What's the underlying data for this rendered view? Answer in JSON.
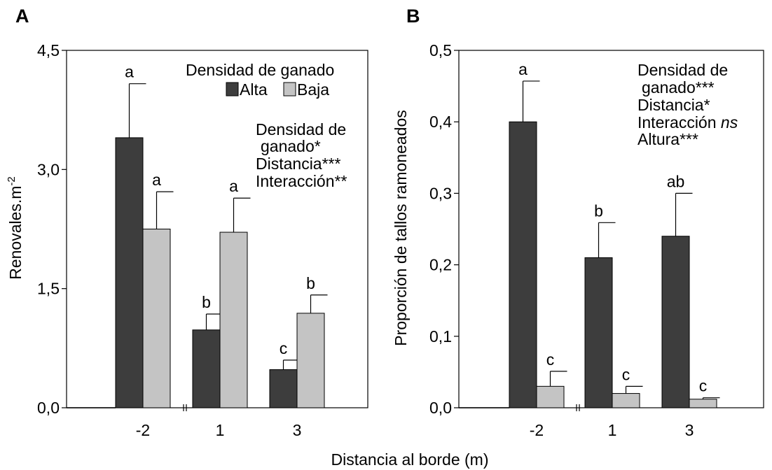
{
  "figure": {
    "xlabel": "Distancia al borde (m)"
  },
  "colors": {
    "alta": "#3d3d3d",
    "baja": "#c4c4c4",
    "axis": "#000000"
  },
  "chart_data": [
    {
      "type": "bar",
      "panel": "A",
      "ylabel": "Renovales.m",
      "ylabel_sup": "-2",
      "categories": [
        "-2",
        "1",
        "3"
      ],
      "ylim": [
        0,
        4.5
      ],
      "yticks": [
        "0,0",
        "1,5",
        "3,0",
        "4,5"
      ],
      "ytick_values": [
        0,
        1.5,
        3.0,
        4.5
      ],
      "axis_break": true,
      "legend": {
        "title": "Densidad de ganado",
        "entries": [
          "Alta",
          "Baja"
        ],
        "placement": "top-right"
      },
      "series": [
        {
          "name": "Alta",
          "values": [
            3.4,
            0.98,
            0.48
          ],
          "errors": [
            0.68,
            0.2,
            0.12
          ],
          "labels": [
            "a",
            "b",
            "c"
          ]
        },
        {
          "name": "Baja",
          "values": [
            2.25,
            2.21,
            1.19
          ],
          "errors": [
            0.47,
            0.43,
            0.23
          ],
          "labels": [
            "a",
            "a",
            "b"
          ]
        }
      ],
      "annotation": {
        "lines": [
          "Densidad de",
          "ganado*",
          "Distancia***",
          "Interacción**"
        ]
      }
    },
    {
      "type": "bar",
      "panel": "B",
      "ylabel": "Proporción de tallos ramoneados",
      "categories": [
        "-2",
        "1",
        "3"
      ],
      "ylim": [
        0,
        0.5
      ],
      "yticks": [
        "0,0",
        "0,1",
        "0,2",
        "0,3",
        "0,4",
        "0,5"
      ],
      "ytick_values": [
        0,
        0.1,
        0.2,
        0.3,
        0.4,
        0.5
      ],
      "axis_break": true,
      "series": [
        {
          "name": "Alta",
          "values": [
            0.4,
            0.21,
            0.24
          ],
          "errors": [
            0.057,
            0.049,
            0.06
          ],
          "labels": [
            "a",
            "b",
            "ab"
          ]
        },
        {
          "name": "Baja",
          "values": [
            0.03,
            0.02,
            0.012
          ],
          "errors": [
            0.021,
            0.01,
            0.002
          ],
          "labels": [
            "c",
            "c",
            "c"
          ]
        }
      ],
      "annotation": {
        "lines": [
          "Densidad de",
          "ganado***",
          "Distancia*",
          "Interacción ",
          "Altura***"
        ],
        "italic_suffix": "ns"
      }
    }
  ]
}
